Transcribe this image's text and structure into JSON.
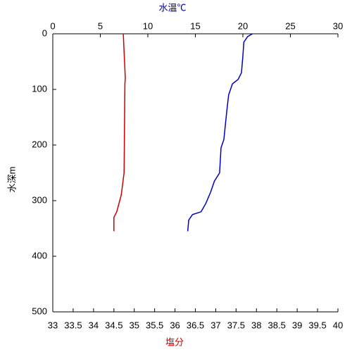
{
  "chart_data": {
    "type": "line",
    "x_label": "塩分",
    "x2_label": "水温℃",
    "y_label": "水深m",
    "xlim": [
      33,
      40
    ],
    "xticks": [
      33,
      33.5,
      34,
      34.5,
      35,
      35.5,
      36,
      36.5,
      37,
      37.5,
      38,
      38.5,
      39,
      39.5,
      40
    ],
    "x2lim": [
      0,
      30
    ],
    "x2ticks": [
      0,
      5,
      10,
      15,
      20,
      25,
      30
    ],
    "ylim": [
      0,
      500
    ],
    "yticks": [
      0,
      100,
      200,
      300,
      400,
      500
    ],
    "y_inverted": true,
    "x_label_color": "#cc0000",
    "x2_label_color": "#000099",
    "series": [
      {
        "color": "#0000cc",
        "axis": "x2",
        "depth": [
          0,
          5,
          15,
          40,
          70,
          82,
          90,
          110,
          140,
          190,
          205,
          250,
          265,
          285,
          305,
          320,
          325,
          335,
          355
        ],
        "values": [
          21.0,
          20.5,
          20.1,
          20.0,
          19.85,
          19.5,
          18.9,
          18.5,
          18.3,
          18.0,
          17.7,
          17.55,
          17.0,
          16.6,
          16.1,
          15.6,
          14.7,
          14.3,
          14.2
        ]
      },
      {
        "color": "#cc0000",
        "axis": "x",
        "depth": [
          0,
          80,
          90,
          250,
          290,
          320,
          330,
          355
        ],
        "values": [
          34.73,
          34.78,
          34.77,
          34.75,
          34.68,
          34.57,
          34.5,
          34.5
        ]
      }
    ]
  }
}
